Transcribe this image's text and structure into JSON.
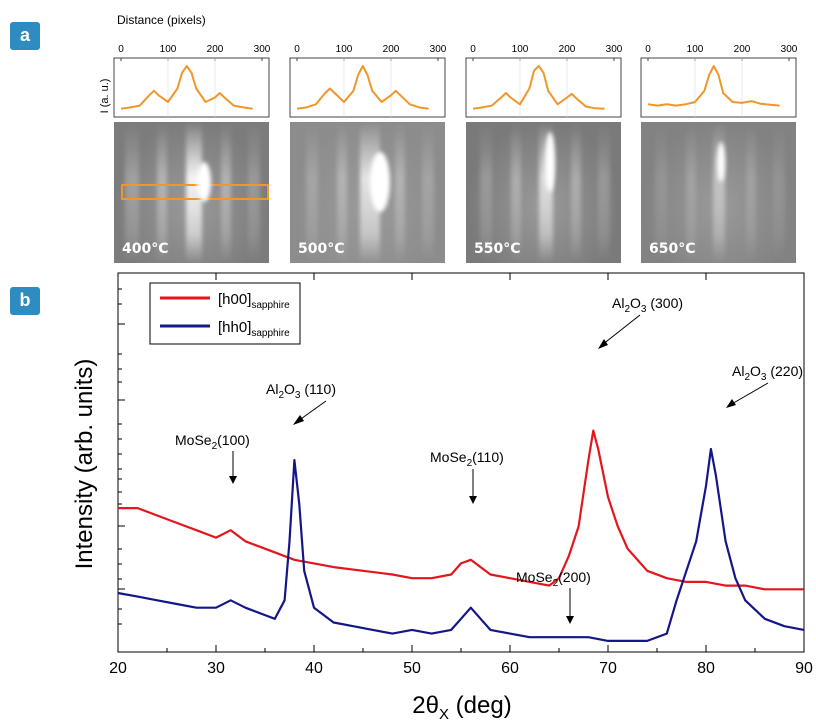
{
  "panel_a": {
    "badge": "a",
    "top_axis_label": "Distance (pixels)",
    "y_label": "I (a. u.)",
    "ticks": [
      "0",
      "100",
      "200",
      "300"
    ],
    "panels": [
      {
        "temperature": "400°C"
      },
      {
        "temperature": "500°C"
      },
      {
        "temperature": "550°C"
      },
      {
        "temperature": "650°C"
      }
    ]
  },
  "panel_b": {
    "badge": "b",
    "annotations": {
      "mose2_100": {
        "base": "MoSe",
        "sub": "2",
        "tail": "(100)"
      },
      "al2o3_110": {
        "base": "Al",
        "sub1": "2",
        "mid": "O",
        "sub2": "3",
        "tail": " (110)"
      },
      "mose2_110": {
        "base": "MoSe",
        "sub": "2",
        "tail": "(110)"
      },
      "al2o3_300": {
        "base": "Al",
        "sub1": "2",
        "mid": "O",
        "sub2": "3",
        "tail": " (300)"
      },
      "al2o3_220": {
        "base": "Al",
        "sub1": "2",
        "mid": "O",
        "sub2": "3",
        "tail": " (220)"
      },
      "mose2_200": {
        "base": "MoSe",
        "sub": "2",
        "tail": "(200)"
      }
    },
    "x_label": {
      "base": "2θ",
      "sub": "X",
      "tail": " (deg)"
    },
    "y_label": "Intensity (arb. units)"
  },
  "colors": {
    "red": "#e3161e",
    "blue": "#14168a",
    "orange": "#f0962a",
    "badge": "#2e8cc0"
  },
  "chart_data": [
    {
      "type": "line",
      "title": "",
      "xlabel": "Distance (pixels)",
      "ylabel": "I (a. u.)",
      "xlim": [
        0,
        300
      ],
      "note_panels": [
        "400°C",
        "500°C",
        "550°C",
        "650°C"
      ],
      "series": [
        {
          "name": "400°C",
          "x": [
            0,
            20,
            40,
            60,
            70,
            80,
            100,
            120,
            130,
            140,
            150,
            160,
            180,
            200,
            210,
            220,
            240,
            260,
            280
          ],
          "y": [
            0.05,
            0.08,
            0.12,
            0.35,
            0.45,
            0.35,
            0.2,
            0.5,
            0.85,
            1.0,
            0.85,
            0.5,
            0.2,
            0.3,
            0.4,
            0.3,
            0.12,
            0.08,
            0.05
          ]
        },
        {
          "name": "500°C",
          "x": [
            0,
            20,
            40,
            60,
            70,
            80,
            100,
            120,
            130,
            140,
            150,
            160,
            180,
            200,
            210,
            220,
            240,
            260,
            280
          ],
          "y": [
            0.05,
            0.08,
            0.15,
            0.4,
            0.5,
            0.4,
            0.2,
            0.45,
            0.8,
            1.0,
            0.8,
            0.45,
            0.2,
            0.35,
            0.45,
            0.35,
            0.15,
            0.08,
            0.05
          ]
        },
        {
          "name": "550°C",
          "x": [
            0,
            20,
            40,
            60,
            70,
            80,
            100,
            120,
            130,
            140,
            150,
            160,
            180,
            200,
            210,
            220,
            240,
            260,
            280
          ],
          "y": [
            0.05,
            0.08,
            0.12,
            0.3,
            0.4,
            0.3,
            0.15,
            0.5,
            0.9,
            1.0,
            0.85,
            0.45,
            0.15,
            0.3,
            0.38,
            0.28,
            0.1,
            0.06,
            0.05
          ]
        },
        {
          "name": "650°C",
          "x": [
            0,
            20,
            40,
            60,
            80,
            100,
            120,
            130,
            140,
            150,
            160,
            180,
            200,
            220,
            240,
            260,
            280
          ],
          "y": [
            0.15,
            0.12,
            0.15,
            0.12,
            0.15,
            0.2,
            0.45,
            0.8,
            1.0,
            0.8,
            0.4,
            0.2,
            0.18,
            0.22,
            0.16,
            0.14,
            0.12
          ]
        }
      ]
    },
    {
      "type": "line",
      "title": "",
      "xlabel": "2θX (deg)",
      "ylabel": "Intensity (arb. units)",
      "xlim": [
        20,
        90
      ],
      "ylim": [
        0,
        1
      ],
      "x_ticks": [
        20,
        30,
        40,
        50,
        60,
        70,
        80,
        90
      ],
      "legend_position": "top-left",
      "series": [
        {
          "name": "[h00]sapphire",
          "x": [
            20,
            22,
            24,
            26,
            28,
            30,
            31.5,
            33,
            35,
            38,
            40,
            42,
            45,
            48,
            50,
            52,
            54,
            55,
            56,
            57,
            58,
            60,
            62,
            64,
            65,
            66,
            67,
            68,
            68.5,
            69,
            70,
            71,
            72,
            74,
            76,
            78,
            80,
            82,
            84,
            86,
            88,
            90
          ],
          "y": [
            0.39,
            0.39,
            0.37,
            0.35,
            0.33,
            0.31,
            0.33,
            0.3,
            0.28,
            0.25,
            0.24,
            0.23,
            0.22,
            0.21,
            0.2,
            0.2,
            0.21,
            0.24,
            0.25,
            0.23,
            0.21,
            0.2,
            0.19,
            0.18,
            0.2,
            0.26,
            0.34,
            0.52,
            0.6,
            0.55,
            0.42,
            0.34,
            0.28,
            0.22,
            0.2,
            0.19,
            0.19,
            0.18,
            0.18,
            0.17,
            0.17,
            0.17
          ]
        },
        {
          "name": "[hh0]sapphire",
          "x": [
            20,
            22,
            24,
            26,
            28,
            30,
            31.5,
            33,
            35,
            36,
            37,
            37.5,
            38,
            38.5,
            39,
            40,
            42,
            44,
            46,
            48,
            50,
            52,
            54,
            55,
            56,
            57,
            58,
            60,
            62,
            64,
            66,
            68,
            70,
            72,
            74,
            76,
            77,
            78,
            79,
            80,
            80.5,
            81,
            82,
            83,
            84,
            86,
            88,
            90
          ],
          "y": [
            0.16,
            0.15,
            0.14,
            0.13,
            0.12,
            0.12,
            0.14,
            0.12,
            0.1,
            0.09,
            0.14,
            0.3,
            0.52,
            0.4,
            0.22,
            0.12,
            0.08,
            0.07,
            0.06,
            0.05,
            0.06,
            0.05,
            0.06,
            0.09,
            0.12,
            0.09,
            0.06,
            0.05,
            0.04,
            0.04,
            0.04,
            0.04,
            0.03,
            0.03,
            0.03,
            0.05,
            0.14,
            0.22,
            0.3,
            0.45,
            0.55,
            0.48,
            0.3,
            0.2,
            0.14,
            0.09,
            0.07,
            0.06
          ]
        }
      ],
      "annotations": [
        "MoSe2(100)",
        "Al2O3 (110)",
        "MoSe2(110)",
        "Al2O3 (300)",
        "Al2O3 (220)",
        "MoSe2(200)"
      ]
    }
  ]
}
